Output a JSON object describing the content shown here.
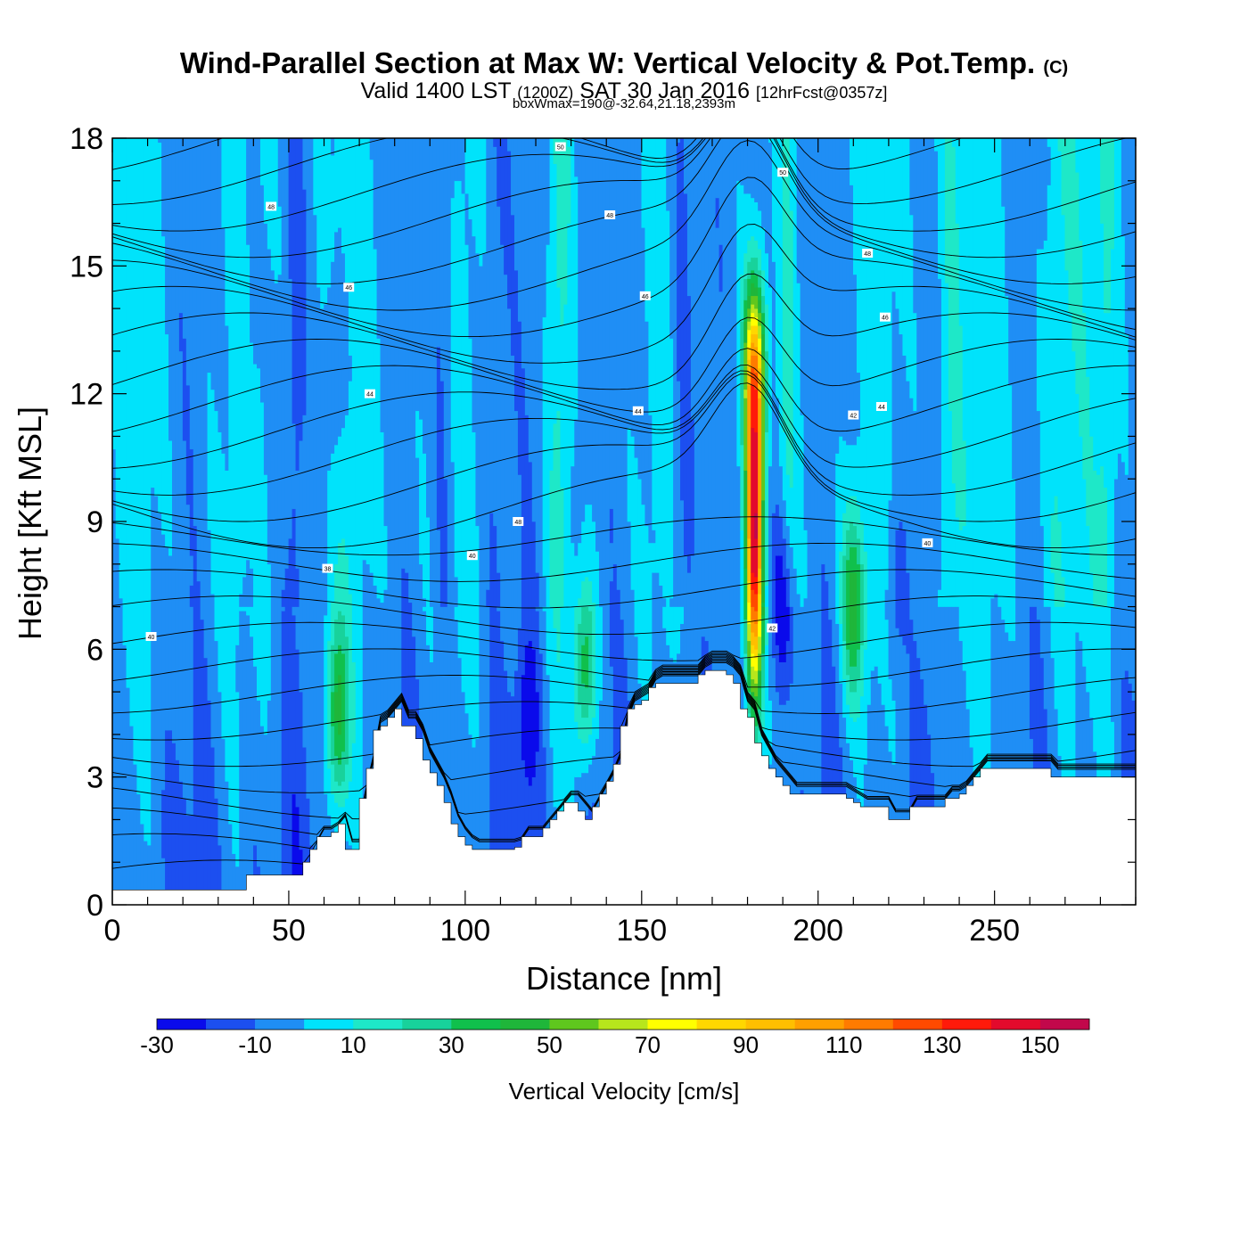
{
  "header": {
    "title_main": "Wind-Parallel Section at Max W: Vertical Velocity & Pot.Temp.",
    "title_copyright": "(C)",
    "valid_prefix": "Valid 1400 LST",
    "valid_utc": "(1200Z)",
    "valid_date": "SAT 30 Jan 2016",
    "forecast": "[12hrFcst@0357z]",
    "box_info": "boxWmax=190@-32.64,21.18,2393m"
  },
  "colorbar": {
    "label": "Vertical Velocity [cm/s]",
    "tick_labels": [
      "-30",
      "-10",
      "10",
      "30",
      "50",
      "70",
      "90",
      "110",
      "130",
      "150"
    ],
    "levels": [
      -30,
      -20,
      -10,
      0,
      10,
      20,
      30,
      40,
      50,
      60,
      70,
      80,
      90,
      100,
      110,
      120,
      130,
      140,
      150,
      160
    ],
    "colors": [
      "#0a0aeb",
      "#1c4ff0",
      "#1f8ef5",
      "#00e3fb",
      "#1ee8c8",
      "#18d29b",
      "#10c04c",
      "#1fb63a",
      "#5fc71e",
      "#b7e61c",
      "#ffff00",
      "#ffd700",
      "#ffbf00",
      "#ffa000",
      "#ff7b00",
      "#ff4a00",
      "#ff1a0a",
      "#e30a2c",
      "#c2084b"
    ]
  },
  "chart_data": {
    "type": "heatmap",
    "title": "Wind-Parallel Section at Max W: Vertical Velocity & Pot.Temp.",
    "xlabel": "Distance [nm]",
    "ylabel": "Height [Kft MSL]",
    "xlim": [
      0,
      290
    ],
    "ylim": [
      0,
      18
    ],
    "x_ticks": [
      0,
      50,
      100,
      150,
      200,
      250
    ],
    "y_ticks": [
      0,
      3,
      6,
      9,
      12,
      15,
      18
    ],
    "colorbar_label": "Vertical Velocity [cm/s]",
    "terrain_kft": {
      "x": [
        0,
        36,
        38,
        40,
        42,
        44,
        46,
        48,
        50,
        52,
        54,
        56,
        58,
        60,
        62,
        64,
        66,
        68,
        70,
        72,
        74,
        76,
        78,
        80,
        82,
        84,
        86,
        88,
        90,
        92,
        94,
        96,
        98,
        100,
        102,
        104,
        106,
        108,
        110,
        112,
        114,
        116,
        118,
        120,
        122,
        124,
        126,
        128,
        130,
        132,
        134,
        136,
        138,
        140,
        142,
        144,
        146,
        148,
        150,
        152,
        154,
        156,
        158,
        160,
        162,
        164,
        166,
        168,
        170,
        172,
        174,
        176,
        178,
        180,
        182,
        184,
        186,
        188,
        190,
        192,
        194,
        196,
        198,
        200,
        202,
        204,
        206,
        208,
        210,
        212,
        214,
        216,
        218,
        220,
        222,
        224,
        226,
        228,
        230,
        232,
        234,
        236,
        238,
        240,
        242,
        244,
        246,
        248,
        250,
        252,
        254,
        256,
        258,
        260,
        262,
        264,
        266,
        268,
        270,
        272,
        274,
        276,
        278,
        280,
        282,
        284,
        286,
        288,
        290
      ],
      "height": [
        0.35,
        0.35,
        0.7,
        0.7,
        0.7,
        0.7,
        0.7,
        0.7,
        0.7,
        0.7,
        1.0,
        1.3,
        1.6,
        1.6,
        1.7,
        1.9,
        1.3,
        1.3,
        2.5,
        3.2,
        4.1,
        4.2,
        4.4,
        4.6,
        4.2,
        4.2,
        3.9,
        3.4,
        3.1,
        2.8,
        2.4,
        1.9,
        1.6,
        1.4,
        1.3,
        1.3,
        1.3,
        1.3,
        1.3,
        1.3,
        1.35,
        1.6,
        1.6,
        1.6,
        1.8,
        2.0,
        2.2,
        2.4,
        2.4,
        2.2,
        2.0,
        2.3,
        2.6,
        2.9,
        3.3,
        4.2,
        4.6,
        4.7,
        4.8,
        5.1,
        5.2,
        5.2,
        5.2,
        5.2,
        5.2,
        5.2,
        5.4,
        5.5,
        5.5,
        5.5,
        5.4,
        5.2,
        4.6,
        4.4,
        3.8,
        3.5,
        3.2,
        3.0,
        2.8,
        2.6,
        2.6,
        2.6,
        2.6,
        2.6,
        2.6,
        2.6,
        2.6,
        2.5,
        2.4,
        2.3,
        2.3,
        2.3,
        2.3,
        2.0,
        2.0,
        2.0,
        2.3,
        2.3,
        2.3,
        2.3,
        2.3,
        2.5,
        2.5,
        2.6,
        2.8,
        3.0,
        3.2,
        3.2,
        3.2,
        3.2,
        3.2,
        3.2,
        3.2,
        3.2,
        3.2,
        3.2,
        3.0,
        3.0,
        3.0,
        3.0,
        3.0,
        3.0,
        3.0,
        3.0,
        3.0,
        3.0,
        3.0,
        3.0,
        3.0
      ]
    },
    "updraft_cores": [
      {
        "x_nm": 182,
        "z_kft": 8.5,
        "w_cm_s": 150
      },
      {
        "x_nm": 182,
        "z_kft": 12.5,
        "w_cm_s": 80
      },
      {
        "x_nm": 64,
        "z_kft": 4.5,
        "w_cm_s": 45
      },
      {
        "x_nm": 134,
        "z_kft": 5.5,
        "w_cm_s": 40
      },
      {
        "x_nm": 210,
        "z_kft": 7.0,
        "w_cm_s": 45
      }
    ],
    "downdraft_cores": [
      {
        "x_nm": 190,
        "z_kft": 7.0,
        "w_cm_s": -30
      },
      {
        "x_nm": 118,
        "z_kft": 4.5,
        "w_cm_s": -20
      },
      {
        "x_nm": 222,
        "z_kft": 7.5,
        "w_cm_s": -15
      },
      {
        "x_nm": 63,
        "z_kft": 12.5,
        "w_cm_s": -15
      }
    ],
    "pot_temp_contour_labels": [
      {
        "label": "40",
        "x_nm": 11,
        "z_kft": 6.3
      },
      {
        "label": "38",
        "x_nm": 61,
        "z_kft": 7.9
      },
      {
        "label": "40",
        "x_nm": 102,
        "z_kft": 8.2
      },
      {
        "label": "48",
        "x_nm": 115,
        "z_kft": 9.0
      },
      {
        "label": "44",
        "x_nm": 73,
        "z_kft": 12.0
      },
      {
        "label": "44",
        "x_nm": 149,
        "z_kft": 11.6
      },
      {
        "label": "46",
        "x_nm": 67,
        "z_kft": 14.5
      },
      {
        "label": "46",
        "x_nm": 151,
        "z_kft": 14.3
      },
      {
        "label": "48",
        "x_nm": 45,
        "z_kft": 16.4
      },
      {
        "label": "48",
        "x_nm": 141,
        "z_kft": 16.2
      },
      {
        "label": "50",
        "x_nm": 127,
        "z_kft": 17.8
      },
      {
        "label": "50",
        "x_nm": 190,
        "z_kft": 17.2
      },
      {
        "label": "48",
        "x_nm": 214,
        "z_kft": 15.3
      },
      {
        "label": "46",
        "x_nm": 219,
        "z_kft": 13.8
      },
      {
        "label": "42",
        "x_nm": 210,
        "z_kft": 11.5
      },
      {
        "label": "44",
        "x_nm": 218,
        "z_kft": 11.7
      },
      {
        "label": "40",
        "x_nm": 231,
        "z_kft": 8.5
      },
      {
        "label": "42",
        "x_nm": 187,
        "z_kft": 6.5
      }
    ]
  }
}
